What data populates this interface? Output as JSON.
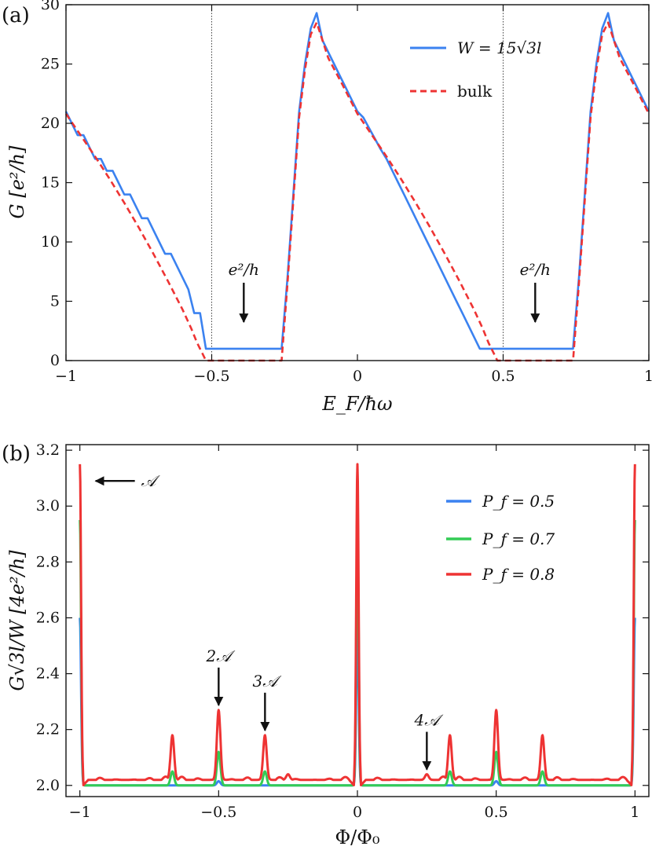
{
  "chart_data": [
    {
      "panel_label": "(a)",
      "type": "line",
      "xlabel": "E_F/ħω",
      "ylabel": "G [e²/h]",
      "xlim": [
        -1,
        1
      ],
      "ylim": [
        0,
        30
      ],
      "xticks": [
        -1,
        -0.5,
        0,
        0.5,
        1
      ],
      "xtick_labels": [
        "−1",
        "−0.5",
        "0",
        "0.5",
        "1"
      ],
      "yticks": [
        0,
        5,
        10,
        15,
        20,
        25,
        30
      ],
      "ytick_labels": [
        "0",
        "5",
        "10",
        "15",
        "20",
        "25",
        "30"
      ],
      "vlines": [
        -0.5,
        0.5
      ],
      "legend_position": "top-right",
      "series": [
        {
          "name": "W = 15√3l",
          "color": "#3b82f0",
          "style": "solid",
          "x": [
            -1,
            -0.98,
            -0.96,
            -0.94,
            -0.92,
            -0.9,
            -0.88,
            -0.86,
            -0.84,
            -0.82,
            -0.8,
            -0.78,
            -0.76,
            -0.74,
            -0.72,
            -0.7,
            -0.68,
            -0.66,
            -0.64,
            -0.62,
            -0.6,
            -0.58,
            -0.56,
            -0.54,
            -0.52,
            -0.5,
            -0.26,
            -0.24,
            -0.22,
            -0.2,
            -0.18,
            -0.16,
            -0.14,
            -0.12,
            -0.1,
            -0.08,
            -0.06,
            -0.04,
            -0.02,
            0,
            0.02,
            0.04,
            0.06,
            0.08,
            0.1,
            0.12,
            0.14,
            0.16,
            0.18,
            0.2,
            0.22,
            0.24,
            0.26,
            0.28,
            0.3,
            0.32,
            0.34,
            0.36,
            0.38,
            0.4,
            0.42,
            0.44,
            0.46,
            0.48,
            0.5,
            0.74,
            0.76,
            0.78,
            0.8,
            0.82,
            0.84,
            0.86,
            0.88,
            0.9,
            0.92,
            0.94,
            0.96,
            0.98,
            1
          ],
          "y": [
            21,
            20,
            19,
            19,
            18,
            17,
            17,
            16,
            16,
            15,
            14,
            14,
            13,
            12,
            12,
            11,
            10,
            9,
            9,
            8,
            7,
            6,
            4,
            4,
            1,
            1,
            1,
            7,
            14,
            21,
            25,
            28,
            29.3,
            27,
            26,
            25,
            24,
            23,
            22,
            21,
            20.5,
            19.6,
            18.7,
            17.8,
            17,
            16,
            15,
            14,
            13,
            12,
            11,
            10,
            9,
            8,
            7,
            6,
            5,
            4,
            3,
            2,
            1,
            1,
            1,
            1,
            1,
            1,
            7,
            14,
            21,
            25,
            28,
            29.3,
            27,
            26,
            25,
            24,
            23,
            22,
            21
          ]
        },
        {
          "name": "bulk",
          "color": "#ee3333",
          "style": "dashed",
          "x": [
            -1,
            -0.95,
            -0.9,
            -0.85,
            -0.8,
            -0.75,
            -0.7,
            -0.65,
            -0.6,
            -0.57,
            -0.55,
            -0.53,
            -0.52,
            -0.5,
            -0.4,
            -0.3,
            -0.26,
            -0.24,
            -0.22,
            -0.2,
            -0.18,
            -0.16,
            -0.14,
            -0.12,
            -0.1,
            -0.05,
            0,
            0.05,
            0.1,
            0.15,
            0.2,
            0.25,
            0.3,
            0.35,
            0.4,
            0.43,
            0.45,
            0.47,
            0.48,
            0.5,
            0.6,
            0.7,
            0.74,
            0.76,
            0.78,
            0.8,
            0.82,
            0.84,
            0.86,
            0.88,
            0.9,
            0.95,
            1
          ],
          "y": [
            20.8,
            19,
            17.2,
            15.3,
            13.3,
            11.2,
            9,
            6.7,
            4.3,
            2.7,
            1.5,
            0.5,
            0,
            0,
            0,
            0,
            0,
            6.5,
            13.5,
            20.5,
            24.5,
            27.5,
            28.5,
            27,
            25.5,
            23.2,
            20.8,
            19,
            17.2,
            15.3,
            13.3,
            11.2,
            9,
            6.7,
            4.3,
            2.7,
            1.5,
            0.5,
            0,
            0,
            0,
            0,
            0,
            6.5,
            13.5,
            20.5,
            24.5,
            27.5,
            28.5,
            27,
            25.5,
            23.2,
            20.8
          ]
        }
      ],
      "annotations": [
        {
          "text": "e²/h",
          "x": -0.39,
          "y": 1,
          "arrow": "down"
        },
        {
          "text": "e²/h",
          "x": 0.61,
          "y": 1,
          "arrow": "down"
        }
      ]
    },
    {
      "panel_label": "(b)",
      "type": "line",
      "xlabel": "Φ/Φ₀",
      "ylabel": "G√3l/W [4e²/h]",
      "xlim": [
        -1.05,
        1.05
      ],
      "ylim": [
        1.96,
        3.22
      ],
      "xticks": [
        -1,
        -0.5,
        0,
        0.5,
        1
      ],
      "xtick_labels": [
        "−1",
        "−0.5",
        "0",
        "0.5",
        "1"
      ],
      "yticks": [
        2.0,
        2.2,
        2.4,
        2.6,
        2.8,
        3.0,
        3.2
      ],
      "ytick_labels": [
        "2.0",
        "2.2",
        "2.4",
        "2.6",
        "2.8",
        "3.0",
        "3.2"
      ],
      "legend_position": "top-right",
      "series": [
        {
          "name": "P_f = 0.5",
          "color": "#3b82f0",
          "peaks": [
            {
              "x": -1,
              "y": 2.6
            },
            {
              "x": 0,
              "y": 2.59
            },
            {
              "x": 1,
              "y": 2.6
            },
            {
              "x": -0.5,
              "y": 2.015
            },
            {
              "x": 0.5,
              "y": 2.015
            }
          ],
          "baseline": 2.0
        },
        {
          "name": "P_f = 0.7",
          "color": "#33cc55",
          "peaks": [
            {
              "x": -1,
              "y": 2.95
            },
            {
              "x": 0,
              "y": 2.95
            },
            {
              "x": 1,
              "y": 2.95
            },
            {
              "x": -0.6667,
              "y": 2.05
            },
            {
              "x": -0.5,
              "y": 2.12
            },
            {
              "x": -0.3333,
              "y": 2.05
            },
            {
              "x": 0.3333,
              "y": 2.05
            },
            {
              "x": 0.5,
              "y": 2.12
            },
            {
              "x": 0.6667,
              "y": 2.05
            }
          ],
          "baseline": 2.0
        },
        {
          "name": "P_f = 0.8",
          "color": "#ee3333",
          "peaks": [
            {
              "x": -1,
              "y": 3.15
            },
            {
              "x": 0,
              "y": 3.15
            },
            {
              "x": 1,
              "y": 3.15
            },
            {
              "x": -0.6667,
              "y": 2.18
            },
            {
              "x": -0.5,
              "y": 2.27
            },
            {
              "x": -0.3333,
              "y": 2.18
            },
            {
              "x": 0.3333,
              "y": 2.18
            },
            {
              "x": 0.5,
              "y": 2.27
            },
            {
              "x": 0.6667,
              "y": 2.18
            },
            {
              "x": -0.25,
              "y": 2.04
            },
            {
              "x": 0.25,
              "y": 2.04
            }
          ],
          "baseline": 2.02,
          "ripple": 0.012
        }
      ],
      "annotations": [
        {
          "text": "𝒜",
          "x": -1,
          "y": 3.09,
          "arrow": "left"
        },
        {
          "text": "2𝒜",
          "x": -0.5,
          "y": 2.27,
          "arrow": "down"
        },
        {
          "text": "3𝒜",
          "x": -0.333,
          "y": 2.18,
          "arrow": "down"
        },
        {
          "text": "4𝒜",
          "x": 0.25,
          "y": 2.04,
          "arrow": "down"
        }
      ]
    }
  ]
}
